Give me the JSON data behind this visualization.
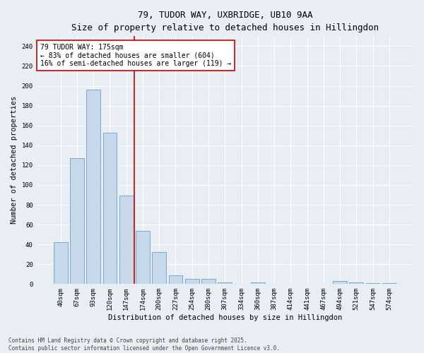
{
  "title": "79, TUDOR WAY, UXBRIDGE, UB10 9AA",
  "subtitle": "Size of property relative to detached houses in Hillingdon",
  "xlabel": "Distribution of detached houses by size in Hillingdon",
  "ylabel": "Number of detached properties",
  "categories": [
    "40sqm",
    "67sqm",
    "93sqm",
    "120sqm",
    "147sqm",
    "174sqm",
    "200sqm",
    "227sqm",
    "254sqm",
    "280sqm",
    "307sqm",
    "334sqm",
    "360sqm",
    "387sqm",
    "414sqm",
    "441sqm",
    "467sqm",
    "494sqm",
    "521sqm",
    "547sqm",
    "574sqm"
  ],
  "values": [
    42,
    127,
    196,
    153,
    89,
    54,
    32,
    9,
    5,
    5,
    2,
    0,
    2,
    0,
    0,
    0,
    0,
    3,
    2,
    1,
    1
  ],
  "bar_color": "#c8d8eb",
  "bar_edge_color": "#7aaac8",
  "vline_x_index": 5,
  "annotation_text": "79 TUDOR WAY: 175sqm\n← 83% of detached houses are smaller (604)\n16% of semi-detached houses are larger (119) →",
  "annotation_box_color": "#ffffff",
  "annotation_box_edge_color": "#cc0000",
  "vline_color": "#cc0000",
  "footer_line1": "Contains HM Land Registry data © Crown copyright and database right 2025.",
  "footer_line2": "Contains public sector information licensed under the Open Government Licence v3.0.",
  "bg_color": "#e8eef4",
  "grid_color": "#ffffff",
  "ylim": [
    0,
    250
  ],
  "yticks": [
    0,
    20,
    40,
    60,
    80,
    100,
    120,
    140,
    160,
    180,
    200,
    220,
    240
  ],
  "title_fontsize": 9,
  "xlabel_fontsize": 7.5,
  "ylabel_fontsize": 7.5,
  "tick_fontsize": 6.5,
  "annotation_fontsize": 7,
  "footer_fontsize": 5.5
}
